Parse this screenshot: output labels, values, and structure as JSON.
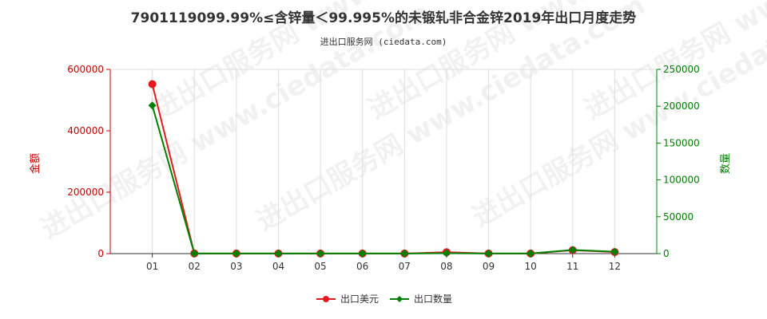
{
  "title": "7901119099.99%≤含锌量＜99.995%的未锻轧非合金锌2019年出口月度走势",
  "subtitle": "进出口服务网 (ciedata.com)",
  "watermark_text": "进出口服务网 www.ciedata.com",
  "colors": {
    "amount": "#e41a1c",
    "quantity": "#008000",
    "grid": "#dddddd"
  },
  "chart_data": {
    "type": "line",
    "categories": [
      "01",
      "02",
      "03",
      "04",
      "05",
      "06",
      "07",
      "08",
      "09",
      "10",
      "11",
      "12"
    ],
    "y_left": {
      "label": "金额",
      "ylim": [
        0,
        600000
      ],
      "ticks": [
        "0",
        "200000",
        "400000",
        "600000"
      ]
    },
    "y_right": {
      "label": "数量",
      "ylim": [
        0,
        250000
      ],
      "ticks": [
        "0",
        "50000",
        "100000",
        "150000",
        "200000",
        "250000"
      ]
    },
    "series": [
      {
        "name": "出口美元",
        "axis": "left",
        "marker": "circle",
        "values": [
          552000,
          500,
          300,
          300,
          300,
          300,
          300,
          4500,
          300,
          300,
          11000,
          5000
        ]
      },
      {
        "name": "出口数量",
        "axis": "right",
        "marker": "diamond",
        "values": [
          201000,
          200,
          100,
          100,
          100,
          100,
          100,
          500,
          100,
          100,
          5000,
          2500
        ]
      }
    ],
    "grid": "vertical",
    "legend_position": "bottom-center"
  }
}
